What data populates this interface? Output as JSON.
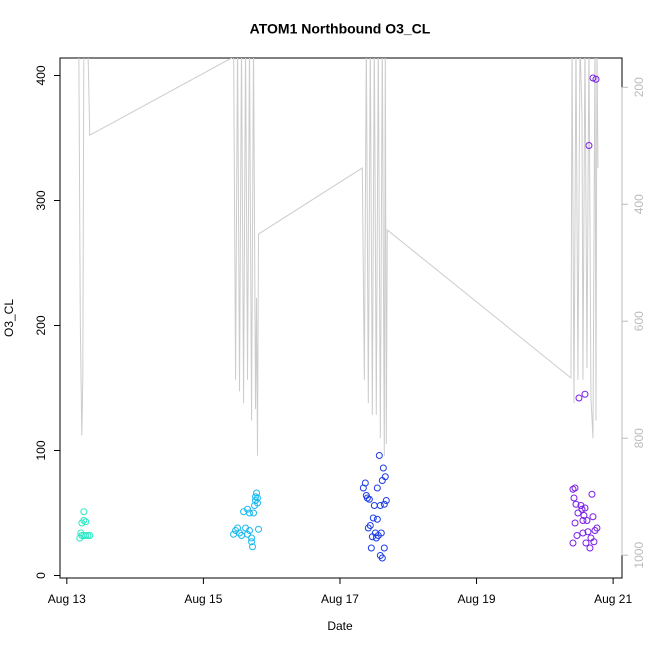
{
  "chart_data": {
    "type": "scatter",
    "title": "ATOM1 Northbound O3_CL",
    "xlabel": "Date",
    "ylabel": "O3_CL",
    "xlim": [
      12.9,
      21.13
    ],
    "xticks": [
      {
        "value": 13,
        "label": "Aug 13"
      },
      {
        "value": 15,
        "label": "Aug 15"
      },
      {
        "value": 17,
        "label": "Aug 17"
      },
      {
        "value": 19,
        "label": "Aug 19"
      },
      {
        "value": 21,
        "label": "Aug 21"
      }
    ],
    "ylim": [
      -2,
      414
    ],
    "yticks": [
      0,
      100,
      200,
      300,
      400
    ],
    "y2lim": [
      1039,
      150
    ],
    "y2ticks": [
      200,
      400,
      600,
      800,
      1000
    ],
    "y2color": "#bbbbbb",
    "series": [
      {
        "color": "#2ce8c4",
        "x": [
          13.19,
          13.205,
          13.22,
          13.249,
          13.249,
          13.278,
          13.278,
          13.307,
          13.336,
          13.22,
          13.249
        ],
        "values": [
          30,
          34,
          42,
          51,
          44,
          43,
          32,
          32,
          32,
          32,
          32
        ]
      },
      {
        "color": "#1cb8f0",
        "x": [
          15.442,
          15.471,
          15.5,
          15.529,
          15.558,
          15.588,
          15.617,
          15.646,
          15.675,
          15.675,
          15.705,
          15.705,
          15.719,
          15.734,
          15.749,
          15.763,
          15.763,
          15.778,
          15.792,
          15.792,
          15.807,
          15.646
        ],
        "values": [
          33,
          36,
          38,
          34,
          32,
          51,
          38,
          33,
          50,
          36,
          30,
          27,
          23,
          50,
          56,
          60,
          63,
          66,
          62,
          58,
          37,
          53
        ]
      },
      {
        "color": "#1c3ce8",
        "x": [
          17.342,
          17.371,
          17.386,
          17.401,
          17.415,
          17.43,
          17.444,
          17.459,
          17.474,
          17.488,
          17.503,
          17.518,
          17.532,
          17.547,
          17.547,
          17.561,
          17.576,
          17.591,
          17.591,
          17.605,
          17.62,
          17.62,
          17.635,
          17.649,
          17.649,
          17.664,
          17.678
        ],
        "values": [
          70,
          74,
          64,
          62,
          38,
          61,
          40,
          22,
          31,
          46,
          56,
          34,
          30,
          45,
          70,
          32,
          96,
          56,
          16,
          34,
          14,
          76,
          86,
          22,
          57,
          79,
          60
        ]
      },
      {
        "color": "#7a1ee8",
        "x": [
          20.412,
          20.412,
          20.427,
          20.442,
          20.442,
          20.456,
          20.471,
          20.485,
          20.5,
          20.529,
          20.544,
          20.558,
          20.558,
          20.573,
          20.588,
          20.588,
          20.602,
          20.617,
          20.632,
          20.646,
          20.661,
          20.675,
          20.69,
          20.705,
          20.705,
          20.719,
          20.734,
          20.749,
          20.763
        ],
        "values": [
          26,
          69,
          62,
          42,
          70,
          57,
          32,
          50,
          142,
          56,
          53,
          44,
          34,
          48,
          54,
          145,
          26,
          44,
          35,
          344,
          22,
          30,
          65,
          47,
          398,
          27,
          36,
          397,
          38
        ]
      },
      {
        "type": "line",
        "axis": "y2",
        "color": "#cccccc",
        "x": [
          13.175,
          13.197,
          13.219,
          13.234,
          13.249,
          13.278,
          13.307,
          13.336,
          15.412,
          15.442,
          15.471,
          15.5,
          15.529,
          15.558,
          15.588,
          15.617,
          15.646,
          15.675,
          15.705,
          15.734,
          15.763,
          15.778,
          15.792,
          15.807,
          17.327,
          17.357,
          17.386,
          17.415,
          17.444,
          17.474,
          17.503,
          17.532,
          17.561,
          17.591,
          17.62,
          17.649,
          17.664,
          17.678,
          17.693,
          20.383,
          20.398,
          20.427,
          20.456,
          20.485,
          20.515,
          20.544,
          20.558,
          20.588,
          20.617,
          20.646,
          20.675,
          20.705,
          20.734,
          20.749,
          20.763,
          20.778
        ],
        "values": [
          120,
          598,
          795,
          700,
          120,
          120,
          120,
          282,
          150,
          120,
          700,
          120,
          720,
          120,
          740,
          120,
          700,
          120,
          770,
          120,
          750,
          560,
          830,
          451,
          338,
          700,
          120,
          740,
          120,
          760,
          120,
          760,
          120,
          800,
          120,
          830,
          120,
          810,
          444,
          697,
          120,
          740,
          120,
          700,
          120,
          248,
          700,
          120,
          680,
          120,
          730,
          800,
          120,
          770,
          120,
          338
        ]
      }
    ]
  }
}
